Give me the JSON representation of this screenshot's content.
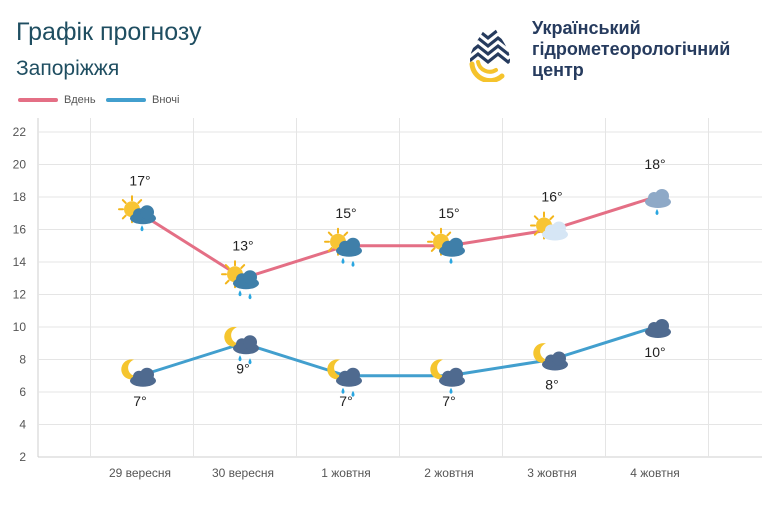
{
  "header": {
    "title": "Графік прогнозу",
    "city": "Запоріжжя"
  },
  "logo": {
    "line1": "Український",
    "line2": "гідрометеорологічний",
    "line3": "центр"
  },
  "colors": {
    "day": "#e46f85",
    "night": "#429fce",
    "grid": "#e5e5e5",
    "text": "#1f4e61"
  },
  "chart_data": {
    "type": "line",
    "categories": [
      "29 вересня",
      "30 вересня",
      "1 жовтня",
      "2 жовтня",
      "3 жовтня",
      "4 жовтня"
    ],
    "series": [
      {
        "name": "Вдень",
        "values": [
          17,
          13,
          15,
          15,
          16,
          18
        ],
        "labels": [
          "17°",
          "13°",
          "15°",
          "15°",
          "16°",
          "18°"
        ],
        "icons": [
          "sun-cloud-light-rain-icon",
          "sun-cloud-rain-icon",
          "sun-cloud-rain-icon",
          "sun-cloud-light-rain-icon",
          "sun-cloud-icon",
          "cloud-light-rain-icon"
        ]
      },
      {
        "name": "Вночі",
        "values": [
          7,
          9,
          7,
          7,
          8,
          10
        ],
        "labels": [
          "7°",
          "9°",
          "7°",
          "7°",
          "8°",
          "10°"
        ],
        "icons": [
          "moon-cloud-icon",
          "moon-cloud-rain-icon",
          "moon-cloud-rain-icon",
          "moon-cloud-light-rain-icon",
          "moon-cloud-icon",
          "cloud-overcast-icon"
        ]
      }
    ],
    "yticks": [
      2,
      4,
      6,
      8,
      10,
      12,
      14,
      16,
      18,
      20,
      22
    ],
    "ylim": [
      2,
      22
    ],
    "grid": true,
    "legend_position": "top-left"
  }
}
